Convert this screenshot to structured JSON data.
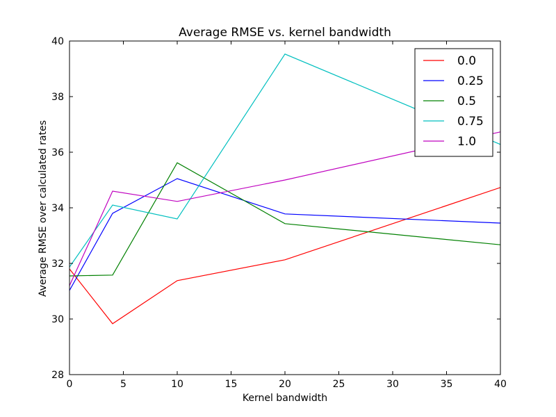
{
  "chart_data": {
    "type": "line",
    "title": "Average RMSE vs. kernel bandwidth",
    "xlabel": "Kernel bandwidth",
    "ylabel": "Average RMSE over calculated rates",
    "xlim": [
      0,
      40
    ],
    "ylim": [
      28,
      40
    ],
    "xticks": [
      "0",
      "5",
      "10",
      "15",
      "20",
      "25",
      "30",
      "35",
      "40"
    ],
    "yticks": [
      "28",
      "30",
      "32",
      "34",
      "36",
      "38",
      "40"
    ],
    "grid": false,
    "legend_position": "top-right",
    "x": [
      0,
      4,
      10,
      20,
      40
    ],
    "series": [
      {
        "name": "0.0",
        "color": "#ff0000",
        "values": [
          31.8,
          29.83,
          31.38,
          32.13,
          34.73
        ]
      },
      {
        "name": "0.25",
        "color": "#0000ff",
        "values": [
          31.03,
          33.8,
          35.05,
          33.78,
          33.45
        ]
      },
      {
        "name": "0.5",
        "color": "#008000",
        "values": [
          31.55,
          31.58,
          35.62,
          33.43,
          32.67
        ]
      },
      {
        "name": "0.75",
        "color": "#00bfbf",
        "values": [
          31.87,
          34.1,
          33.6,
          39.53,
          36.28
        ]
      },
      {
        "name": "1.0",
        "color": "#bf00bf",
        "values": [
          31.2,
          34.6,
          34.23,
          35.0,
          36.73
        ]
      }
    ]
  }
}
